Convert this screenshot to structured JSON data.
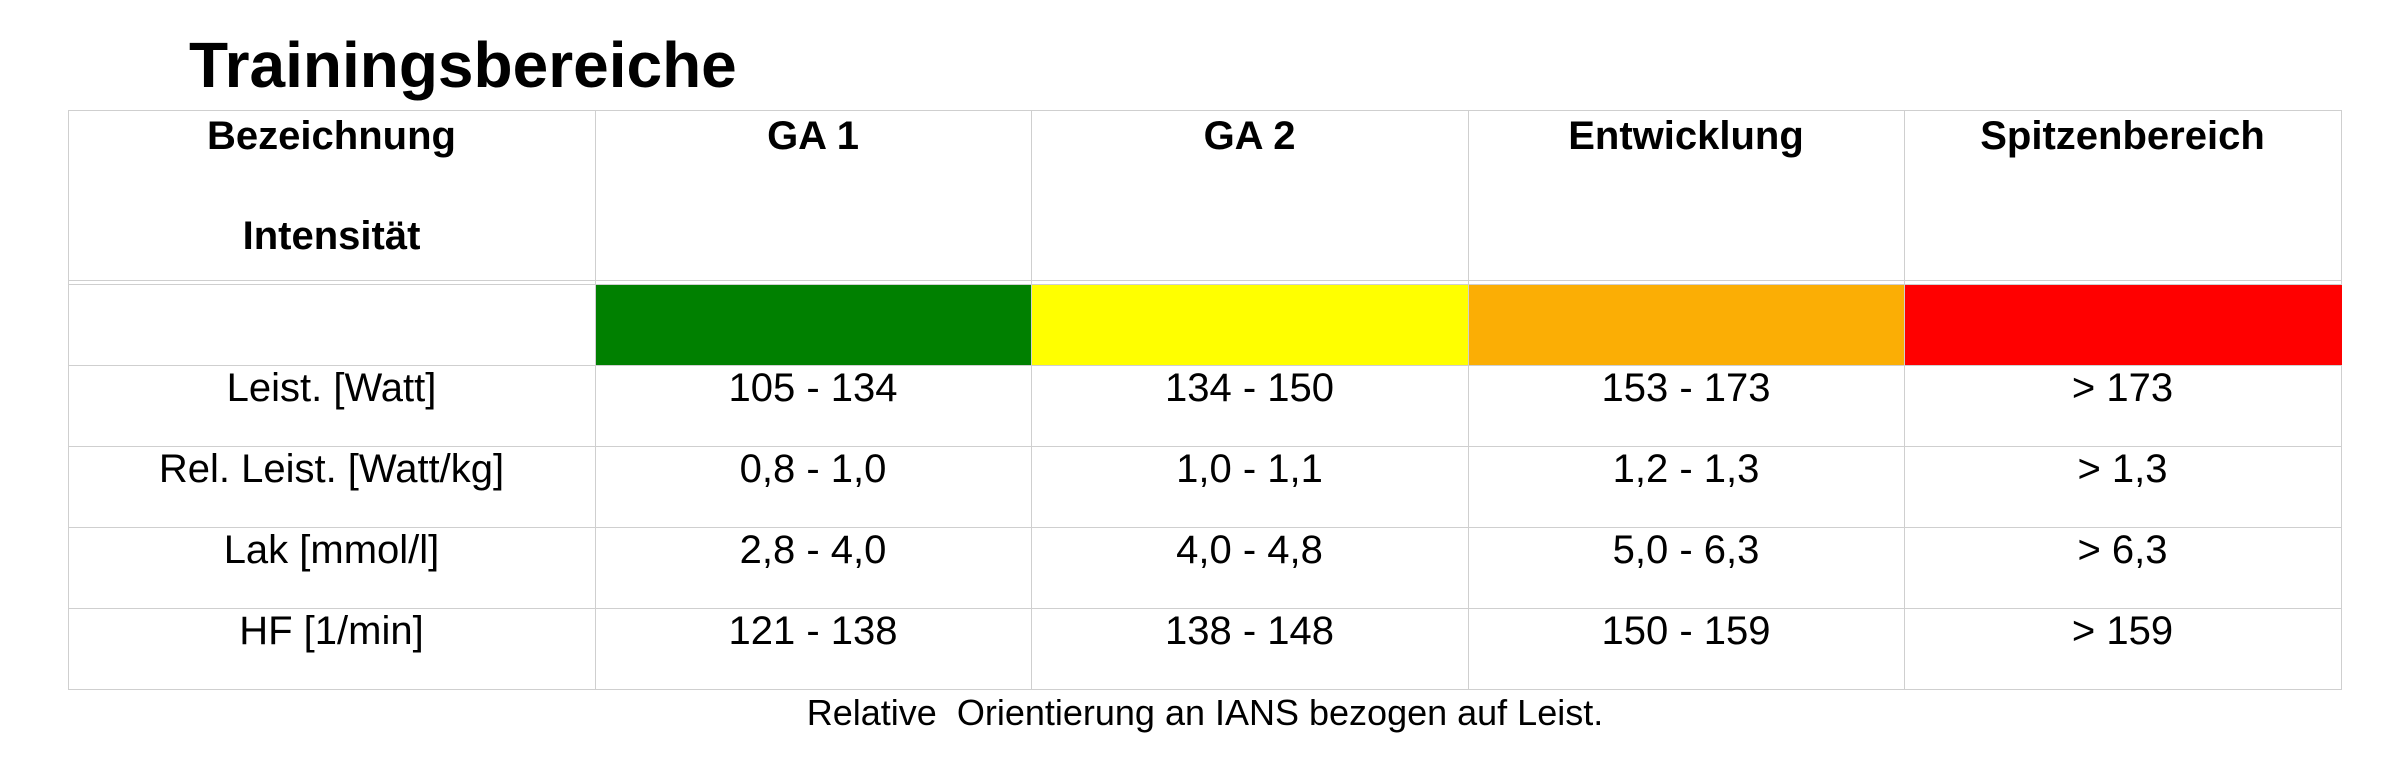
{
  "title": "Trainingsbereiche",
  "table": {
    "row_label_header_1": "Bezeichnung",
    "row_label_header_2": "Intensität",
    "zones": [
      {
        "name": "GA 1",
        "color": "#008000"
      },
      {
        "name": "GA 2",
        "color": "#FFFF00"
      },
      {
        "name": "Entwicklung",
        "color": "#FBAE05"
      },
      {
        "name": "Spitzenbereich",
        "color": "#FF0000"
      }
    ],
    "rows": [
      {
        "label": "Leist. [Watt]",
        "values": [
          "105 - 134",
          "134 - 150",
          "153 - 173",
          "> 173"
        ]
      },
      {
        "label": "Rel. Leist. [Watt/kg]",
        "values": [
          "0,8 - 1,0",
          "1,0 - 1,1",
          "1,2 - 1,3",
          "> 1,3"
        ]
      },
      {
        "label": "Lak [mmol/l]",
        "values": [
          "2,8 - 4,0",
          "4,0 - 4,8",
          "5,0 - 6,3",
          "> 6,3"
        ]
      },
      {
        "label": "HF [1/min]",
        "values": [
          "121 - 138",
          "138 - 148",
          "150 - 159",
          "> 159"
        ]
      }
    ]
  },
  "footnote": "Relative  Orientierung an IANS bezogen auf Leist."
}
